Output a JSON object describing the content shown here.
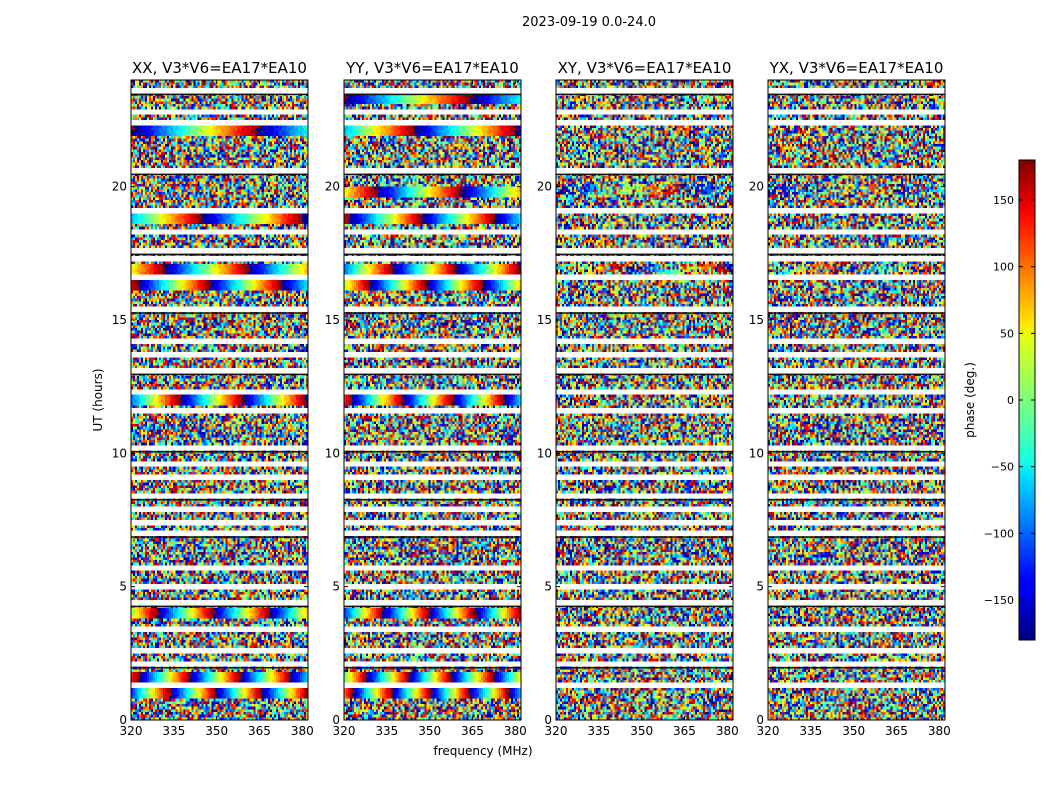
{
  "figure": {
    "suptitle": "2023-09-19 0.0-24.0"
  },
  "chart_data": {
    "type": "heatmap",
    "xlabel": "frequency (MHz)",
    "ylabel": "UT (hours)",
    "xlim": [
      320,
      382
    ],
    "ylim": [
      0,
      24
    ],
    "x_ticks": [
      320,
      335,
      350,
      365,
      380
    ],
    "y_ticks": [
      0,
      5,
      10,
      15,
      20
    ],
    "panels": [
      {
        "title": "XX, V3*V6=EA17*EA10",
        "coherent_bands_hours": [
          22.1,
          18.8,
          16.9,
          16.3,
          12.0,
          4.0,
          1.6,
          1.0
        ],
        "coherent_strength": 1.0
      },
      {
        "title": "YY, V3*V6=EA17*EA10",
        "coherent_bands_hours": [
          23.3,
          22.1,
          19.8,
          18.8,
          16.9,
          16.3,
          12.0,
          4.0,
          1.6,
          1.0
        ],
        "coherent_strength": 1.0
      },
      {
        "title": "XY, V3*V6=EA17*EA10",
        "coherent_bands_hours": [
          19.9,
          16.9
        ],
        "coherent_strength": 0.4
      },
      {
        "title": "YX, V3*V6=EA17*EA10",
        "coherent_bands_hours": [
          19.9,
          16.9
        ],
        "coherent_strength": 0.3
      }
    ],
    "gap_bands_hours": [
      23.6,
      22.8,
      22.4,
      20.6,
      19.1,
      18.3,
      17.6,
      17.3,
      16.6,
      15.4,
      14.2,
      13.7,
      13.1,
      12.3,
      11.6,
      10.2,
      9.6,
      9.1,
      8.4,
      7.9,
      7.4,
      7.0,
      5.7,
      5.0,
      4.4,
      3.4,
      2.6,
      2.1,
      1.3
    ],
    "colorbar": {
      "label": "phase (deg.)",
      "range": [
        -180,
        180
      ],
      "ticks": [
        150,
        100,
        50,
        0,
        -50,
        -100,
        -150
      ],
      "colormap": "jet"
    }
  }
}
